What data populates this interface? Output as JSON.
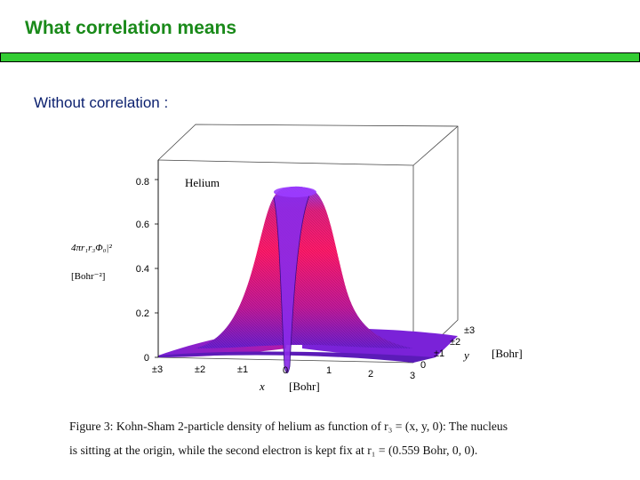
{
  "slide": {
    "title": "What correlation means",
    "subheading": "Without correlation :"
  },
  "figure": {
    "panel_label": "Helium",
    "z_label": "4πr₁r₃Φ₀|²",
    "z_unit": "[Bohr⁻²]",
    "x_label": "x",
    "x_unit": "[Bohr]",
    "y_label": "y",
    "y_unit": "[Bohr]",
    "caption_line1": "Figure 3:  Kohn-Sham 2-particle density of helium as function of r₃ = (x, y, 0):  The nucleus",
    "caption_line2": "is sitting at the origin, while the second electron is kept fix at r₁ = (0.559 Bohr, 0, 0)."
  },
  "chart_data": {
    "type": "surface",
    "title": "Helium",
    "xlabel": "x [Bohr]",
    "ylabel": "y [Bohr]",
    "zlabel": "4πr₁r₃Φ₀|² [Bohr⁻²]",
    "xticks": [
      "±3",
      "±2",
      "±1",
      "0",
      "1",
      "2",
      "3"
    ],
    "yticks": [
      "0",
      "±1",
      "±2",
      "±3"
    ],
    "zticks": [
      "0",
      "0.2",
      "0.4",
      "0.6",
      "0.8"
    ],
    "zlim": [
      0,
      0.8
    ],
    "peak_value": 0.75,
    "value_at_nucleus": 0.0,
    "colors": {
      "low": "#6a1fd0",
      "high": "#ff1a6a",
      "top": "#9b3cff"
    }
  }
}
